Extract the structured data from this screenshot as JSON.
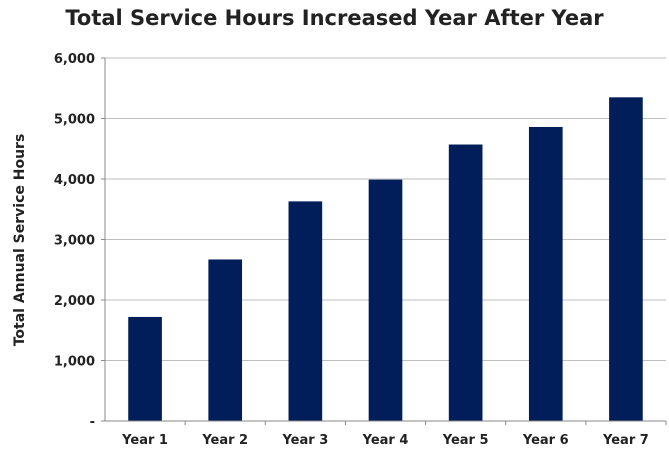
{
  "chart_data": {
    "type": "bar",
    "title": "Total Service Hours Increased Year After Year",
    "xlabel": "",
    "ylabel": "Total Annual Service Hours",
    "categories": [
      "Year 1",
      "Year 2",
      "Year 3",
      "Year 4",
      "Year 5",
      "Year 6",
      "Year 7"
    ],
    "values": [
      1720,
      2670,
      3630,
      3990,
      4570,
      4860,
      5350
    ],
    "ylim": [
      0,
      6000
    ],
    "yticks": [
      0,
      1000,
      2000,
      3000,
      4000,
      5000,
      6000
    ],
    "ytick_labels": [
      "-",
      "1,000",
      "2,000",
      "3,000",
      "4,000",
      "5,000",
      "6,000"
    ],
    "grid": true,
    "legend": "none",
    "bar_color": "#021e5a",
    "grid_color": "#bfbfbf"
  }
}
